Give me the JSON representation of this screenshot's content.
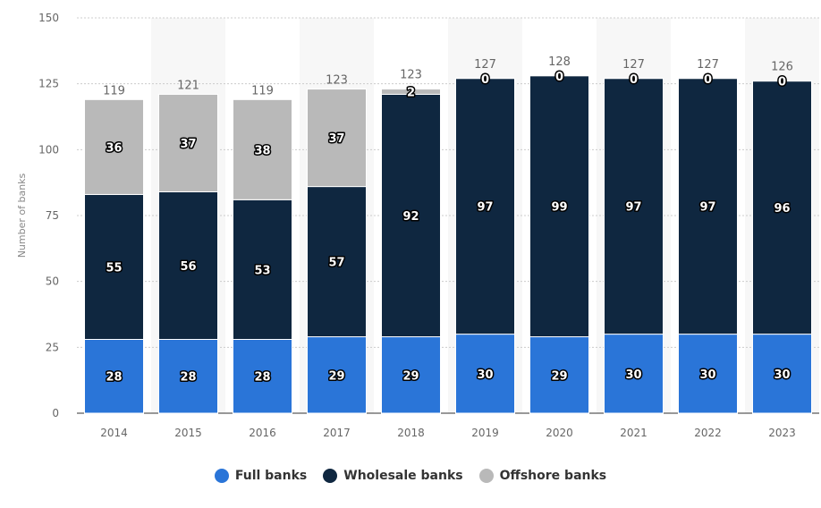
{
  "chart_data": {
    "type": "bar",
    "stacked": true,
    "title": "",
    "xlabel": "",
    "ylabel": "Number of banks",
    "ylim": [
      0,
      150
    ],
    "yticks": [
      0,
      25,
      50,
      75,
      100,
      125,
      150
    ],
    "grid": true,
    "legend_position": "bottom",
    "categories": [
      "2014",
      "2015",
      "2016",
      "2017",
      "2018",
      "2019",
      "2020",
      "2021",
      "2022",
      "2023"
    ],
    "series": [
      {
        "name": "Full banks",
        "color": "#2a75d8",
        "values": [
          28,
          28,
          28,
          29,
          29,
          30,
          29,
          30,
          30,
          30
        ]
      },
      {
        "name": "Wholesale banks",
        "color": "#0f2740",
        "values": [
          55,
          56,
          53,
          57,
          92,
          97,
          99,
          97,
          97,
          96
        ]
      },
      {
        "name": "Offshore banks",
        "color": "#b9b9b9",
        "values": [
          36,
          37,
          38,
          37,
          2,
          0,
          0,
          0,
          0,
          0
        ]
      }
    ],
    "totals": [
      119,
      121,
      119,
      123,
      123,
      127,
      128,
      127,
      127,
      126
    ]
  }
}
